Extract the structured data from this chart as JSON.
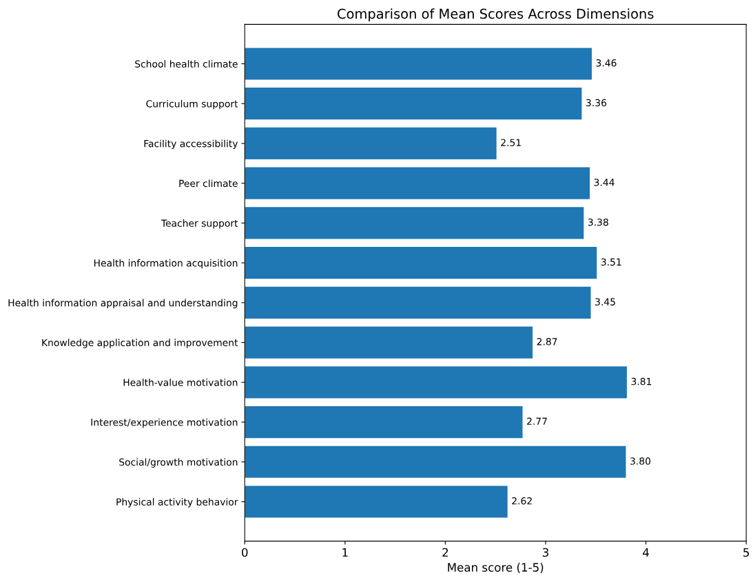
{
  "chart_data": {
    "type": "bar",
    "orientation": "horizontal",
    "title": "Comparison of Mean Scores Across Dimensions",
    "xlabel": "Mean score (1-5)",
    "categories": [
      "School health climate",
      "Curriculum support",
      "Facility accessibility",
      "Peer climate",
      "Teacher support",
      "Health information acquisition",
      "Health information appraisal and understanding",
      "Knowledge application and improvement",
      "Health-value motivation",
      "Interest/experience motivation",
      "Social/growth motivation",
      "Physical activity behavior"
    ],
    "values": [
      3.46,
      3.36,
      2.51,
      3.44,
      3.38,
      3.51,
      3.45,
      2.87,
      3.81,
      2.77,
      3.8,
      2.62
    ],
    "value_labels": [
      "3.46",
      "3.36",
      "2.51",
      "3.44",
      "3.38",
      "3.51",
      "3.45",
      "2.87",
      "3.81",
      "2.77",
      "3.80",
      "2.62"
    ],
    "color": "#1f77b4",
    "xlim": [
      0,
      5
    ],
    "xticks": [
      0,
      1,
      2,
      3,
      4,
      5
    ],
    "grid": false
  }
}
